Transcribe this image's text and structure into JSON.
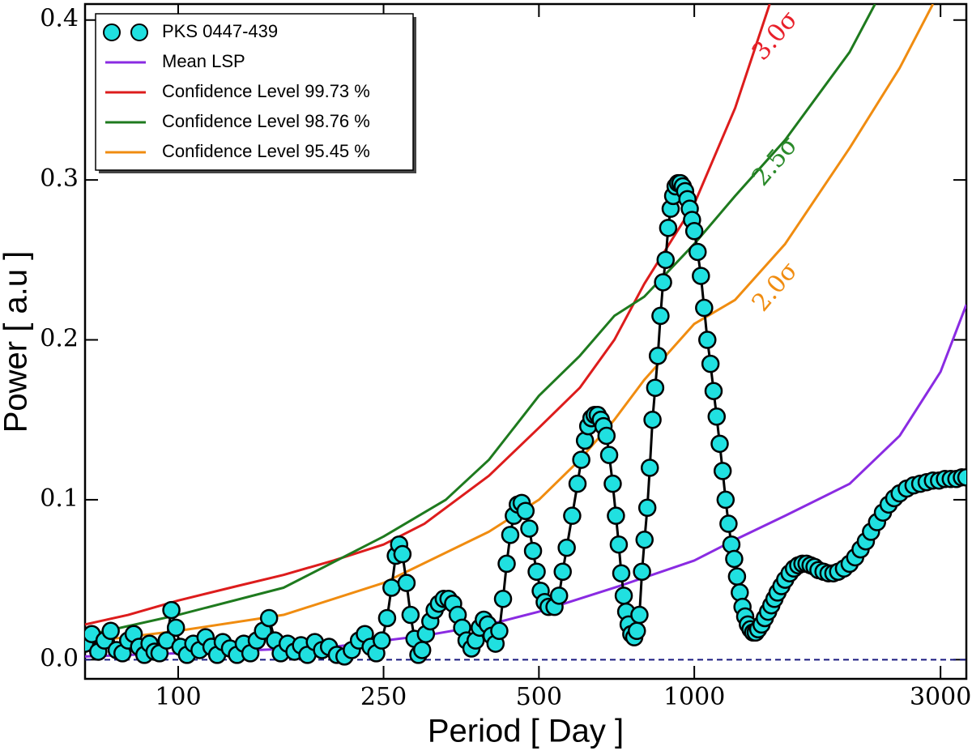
{
  "chart_data": {
    "type": "scatter",
    "x_label": "Period [ Day ]",
    "y_label": "Power [ a.u ]",
    "log_x": true,
    "xlim": [
      66,
      3366
    ],
    "ylim": [
      -0.012,
      0.41
    ],
    "xticks": [
      100,
      250,
      500,
      1000,
      3000
    ],
    "yticks": [
      {
        "value": 0,
        "label": "0.0"
      },
      0.1,
      0.2,
      0.3,
      0.4
    ],
    "legend": "upper left",
    "reference_line": {
      "y": 0,
      "color": "#1a1a80",
      "dashed": true
    },
    "series": [
      {
        "name": "PKS 0447-439",
        "color": "#20e0e0",
        "edge_color": "#000000",
        "marker": "circle",
        "x": [
          66,
          68,
          70,
          72,
          74,
          76,
          78,
          80,
          82,
          84,
          86,
          88,
          90,
          92,
          95,
          97,
          99,
          101,
          104,
          107,
          110,
          113,
          116,
          119,
          122,
          126,
          130,
          134,
          138,
          142,
          146,
          150,
          154,
          158,
          163,
          168,
          173,
          178,
          184,
          190,
          196,
          203,
          210,
          217,
          224,
          230,
          236,
          242,
          248,
          254,
          259,
          264,
          268,
          272,
          277,
          282,
          287,
          292,
          297,
          302,
          308,
          314,
          320,
          327,
          334,
          341,
          348,
          355,
          362,
          370,
          377,
          384,
          391,
          398,
          405,
          412,
          419,
          426,
          433,
          440,
          447,
          455,
          463,
          471,
          479,
          487,
          495,
          504,
          513,
          522,
          536,
          547,
          556,
          566,
          580,
          594,
          604,
          614,
          623,
          632,
          641,
          650,
          659,
          667,
          676,
          684,
          695,
          705,
          714,
          722,
          730,
          738,
          746,
          755,
          765,
          774,
          783,
          792,
          801,
          811,
          820,
          830,
          840,
          850,
          860,
          870,
          880,
          890,
          900,
          910,
          920,
          930,
          940,
          950,
          960,
          970,
          980,
          990,
          1000,
          1015,
          1030,
          1045,
          1060,
          1075,
          1090,
          1105,
          1120,
          1135,
          1150,
          1165,
          1180,
          1195,
          1210,
          1225,
          1240,
          1255,
          1270,
          1285,
          1300,
          1315,
          1330,
          1350,
          1370,
          1390,
          1410,
          1430,
          1450,
          1475,
          1500,
          1530,
          1560,
          1590,
          1620,
          1650,
          1680,
          1710,
          1740,
          1780,
          1820,
          1860,
          1900,
          1950,
          2000,
          2050,
          2100,
          2150,
          2200,
          2260,
          2320,
          2380,
          2440,
          2500,
          2580,
          2660,
          2740,
          2820,
          2900,
          2980,
          3060,
          3140,
          3220,
          3300,
          3366
        ],
        "values": [
          0.01,
          0.016,
          0.005,
          0.012,
          0.018,
          0.006,
          0.004,
          0.012,
          0.016,
          0.008,
          0.003,
          0.01,
          0.005,
          0.004,
          0.012,
          0.031,
          0.02,
          0.008,
          0.003,
          0.01,
          0.006,
          0.014,
          0.008,
          0.003,
          0.011,
          0.007,
          0.003,
          0.01,
          0.004,
          0.012,
          0.018,
          0.026,
          0.012,
          0.004,
          0.01,
          0.005,
          0.009,
          0.003,
          0.011,
          0.006,
          0.008,
          0.003,
          0.002,
          0.006,
          0.012,
          0.016,
          0.008,
          0.004,
          0.012,
          0.026,
          0.045,
          0.065,
          0.072,
          0.066,
          0.048,
          0.028,
          0.013,
          0.003,
          0.006,
          0.016,
          0.024,
          0.031,
          0.035,
          0.038,
          0.038,
          0.035,
          0.028,
          0.02,
          0.012,
          0.007,
          0.012,
          0.02,
          0.025,
          0.022,
          0.015,
          0.01,
          0.018,
          0.038,
          0.06,
          0.078,
          0.09,
          0.097,
          0.098,
          0.093,
          0.082,
          0.068,
          0.055,
          0.043,
          0.036,
          0.033,
          0.033,
          0.04,
          0.055,
          0.07,
          0.09,
          0.11,
          0.125,
          0.137,
          0.146,
          0.151,
          0.153,
          0.153,
          0.15,
          0.146,
          0.14,
          0.128,
          0.11,
          0.09,
          0.072,
          0.054,
          0.04,
          0.03,
          0.022,
          0.016,
          0.014,
          0.018,
          0.028,
          0.055,
          0.075,
          0.095,
          0.12,
          0.15,
          0.17,
          0.19,
          0.215,
          0.236,
          0.25,
          0.27,
          0.282,
          0.29,
          0.296,
          0.298,
          0.298,
          0.296,
          0.293,
          0.288,
          0.282,
          0.275,
          0.268,
          0.255,
          0.24,
          0.22,
          0.2,
          0.185,
          0.168,
          0.152,
          0.135,
          0.118,
          0.1,
          0.085,
          0.072,
          0.063,
          0.052,
          0.042,
          0.033,
          0.027,
          0.022,
          0.019,
          0.017,
          0.017,
          0.019,
          0.022,
          0.026,
          0.03,
          0.034,
          0.038,
          0.042,
          0.046,
          0.05,
          0.054,
          0.057,
          0.059,
          0.06,
          0.06,
          0.059,
          0.058,
          0.056,
          0.055,
          0.054,
          0.054,
          0.055,
          0.057,
          0.06,
          0.064,
          0.069,
          0.074,
          0.08,
          0.086,
          0.092,
          0.097,
          0.101,
          0.104,
          0.107,
          0.109,
          0.11,
          0.111,
          0.112,
          0.112,
          0.113,
          0.113,
          0.113,
          0.114,
          0.114
        ]
      },
      {
        "name": "Mean LSP",
        "color": "#8a2be2",
        "x": [
          66,
          100,
          200,
          300,
          400,
          500,
          700,
          1000,
          1200,
          1500,
          2000,
          2500,
          3000,
          3366
        ],
        "values": [
          0.002,
          0.004,
          0.008,
          0.015,
          0.022,
          0.03,
          0.045,
          0.062,
          0.075,
          0.09,
          0.11,
          0.14,
          0.18,
          0.222
        ]
      },
      {
        "name": "Confidence Level 99.73 %",
        "color": "#dd1c1c",
        "x": [
          66,
          80,
          100,
          130,
          160,
          200,
          250,
          300,
          400,
          500,
          600,
          700,
          800,
          1000,
          1200,
          1400
        ],
        "values": [
          0.022,
          0.028,
          0.037,
          0.046,
          0.053,
          0.062,
          0.072,
          0.085,
          0.115,
          0.145,
          0.17,
          0.2,
          0.235,
          0.285,
          0.345,
          0.41
        ]
      },
      {
        "name": "Confidence Level 98.76 %",
        "color": "#1e7a1e",
        "x": [
          66,
          100,
          160,
          250,
          330,
          400,
          500,
          600,
          700,
          800,
          1000,
          1200,
          1500,
          2000,
          2240
        ],
        "values": [
          0.015,
          0.028,
          0.045,
          0.077,
          0.1,
          0.125,
          0.165,
          0.19,
          0.215,
          0.227,
          0.26,
          0.29,
          0.325,
          0.38,
          0.41
        ]
      },
      {
        "name": "Confidence Level 95.45 %",
        "color": "#f08c10",
        "x": [
          66,
          100,
          160,
          250,
          400,
          500,
          600,
          700,
          800,
          1000,
          1200,
          1500,
          2000,
          2500,
          2900
        ],
        "values": [
          0.011,
          0.018,
          0.028,
          0.048,
          0.08,
          0.1,
          0.125,
          0.15,
          0.175,
          0.21,
          0.225,
          0.26,
          0.32,
          0.37,
          0.41
        ]
      }
    ],
    "annotations": [
      {
        "text": "3.0σ",
        "color": "#e8202a"
      },
      {
        "text": "2.5σ",
        "color": "#2a8a2a"
      },
      {
        "text": "2.0σ",
        "color": "#f08c10"
      }
    ]
  }
}
